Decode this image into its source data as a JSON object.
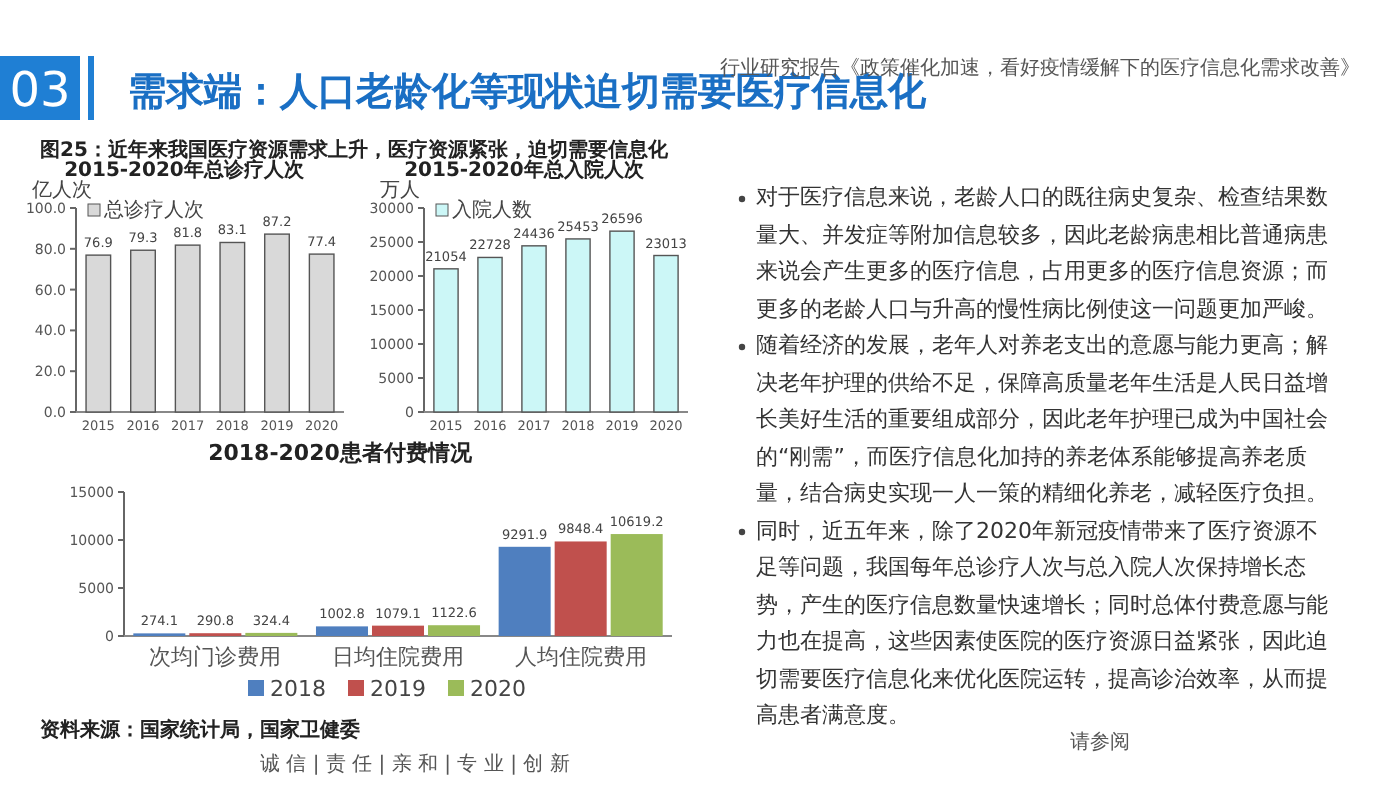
{
  "chart_data": [
    {
      "type": "bar",
      "title": "2015-2020年总诊疗人次",
      "ylabel": "亿人次",
      "categories": [
        "2015",
        "2016",
        "2017",
        "2018",
        "2019",
        "2020"
      ],
      "series": [
        {
          "name": "总诊疗人次",
          "color": "#d9d9d9",
          "values": [
            76.9,
            79.3,
            81.8,
            83.1,
            87.2,
            77.4
          ]
        }
      ],
      "ylim": [
        0,
        100
      ],
      "yticks": [
        {
          "value": 0,
          "label": "0.0"
        },
        {
          "value": 20,
          "label": "20.0"
        },
        {
          "value": 40,
          "label": "40.0"
        },
        {
          "value": 60,
          "label": "60.0"
        },
        {
          "value": 80,
          "label": "80.0"
        },
        {
          "value": 100,
          "label": "100.0"
        }
      ],
      "legend": "top left",
      "data_labels": true
    },
    {
      "type": "bar",
      "title": "2015-2020年总入院人次",
      "ylabel": "万人",
      "categories": [
        "2015",
        "2016",
        "2017",
        "2018",
        "2019",
        "2020"
      ],
      "series": [
        {
          "name": "入院人数",
          "color": "#ccf7f7",
          "values": [
            21054,
            22728,
            24436,
            25453,
            26596,
            23013
          ]
        }
      ],
      "ylim": [
        0,
        30000
      ],
      "yticks": [
        0,
        5000,
        10000,
        15000,
        20000,
        25000,
        30000
      ],
      "legend": "top left",
      "data_labels": true
    },
    {
      "type": "bar",
      "title": "2018-2020患者付费情况",
      "categories": [
        "次均门诊费用",
        "日均住院费用",
        "人均住院费用"
      ],
      "series": [
        {
          "name": "2018",
          "color": "#4f7fbf",
          "values": [
            274.1,
            1002.8,
            9291.9
          ]
        },
        {
          "name": "2019",
          "color": "#c0504d",
          "values": [
            290.8,
            1079.1,
            9848.4
          ]
        },
        {
          "name": "2020",
          "color": "#9bbb59",
          "values": [
            324.4,
            1122.6,
            10619.2
          ]
        }
      ],
      "ylim": [
        0,
        15000
      ],
      "yticks": [
        0,
        5000,
        10000,
        15000
      ],
      "legend": "bottom",
      "data_labels": true,
      "annotations": [
        "资料来源：国家统计局，国家卫健委"
      ]
    },
    {
      "type": "other",
      "title": "需求端：人口老龄化等现状迫切需要医疗信息化",
      "annotations": [
        "03",
        "行业研究报告《政策催化加速，看好疫情缓解下的医疗信息化需求改善》",
        "图25：近年来我国医疗资源需求上升，医疗资源紧张，迫切需要信息化",
        "对于医疗信息来说，老龄人口的既往病史复杂、检查结果数量大、并发症等附加信息较多，因此老龄病患相比普通病患来说会产生更多的医疗信息，占用更多的医疗信息资源；而更多的老龄人口与升高的慢性病比例使这一问题更加严峻。",
        "随着经济的发展，老年人对养老支出的意愿与能力更高；解决老年护理的供给不足，保障高质量老年生活是人民日益增长美好生活的重要组成部分，因此老年护理已成为中国社会的“刚需”，而医疗信息化加持的养老体系能够提高养老质量，结合病史实现一人一策的精细化养老，减轻医疗负担。",
        "同时，近五年来，除了2020年新冠疫情带来了医疗资源不足等问题，我国每年总诊疗人次与总入院人次保持增长态势，产生的医疗信息数量快速增长；同时总体付费意愿与能力也在提高，这些因素使医院的医疗资源日益紧张，因此迫切需要医疗信息化来优化医院运转，提高诊治效率，从而提高患者满意度。",
        "诚 信 | 责 任 | 亲 和 | 专 业 | 创 新",
        "请参阅"
      ]
    }
  ]
}
